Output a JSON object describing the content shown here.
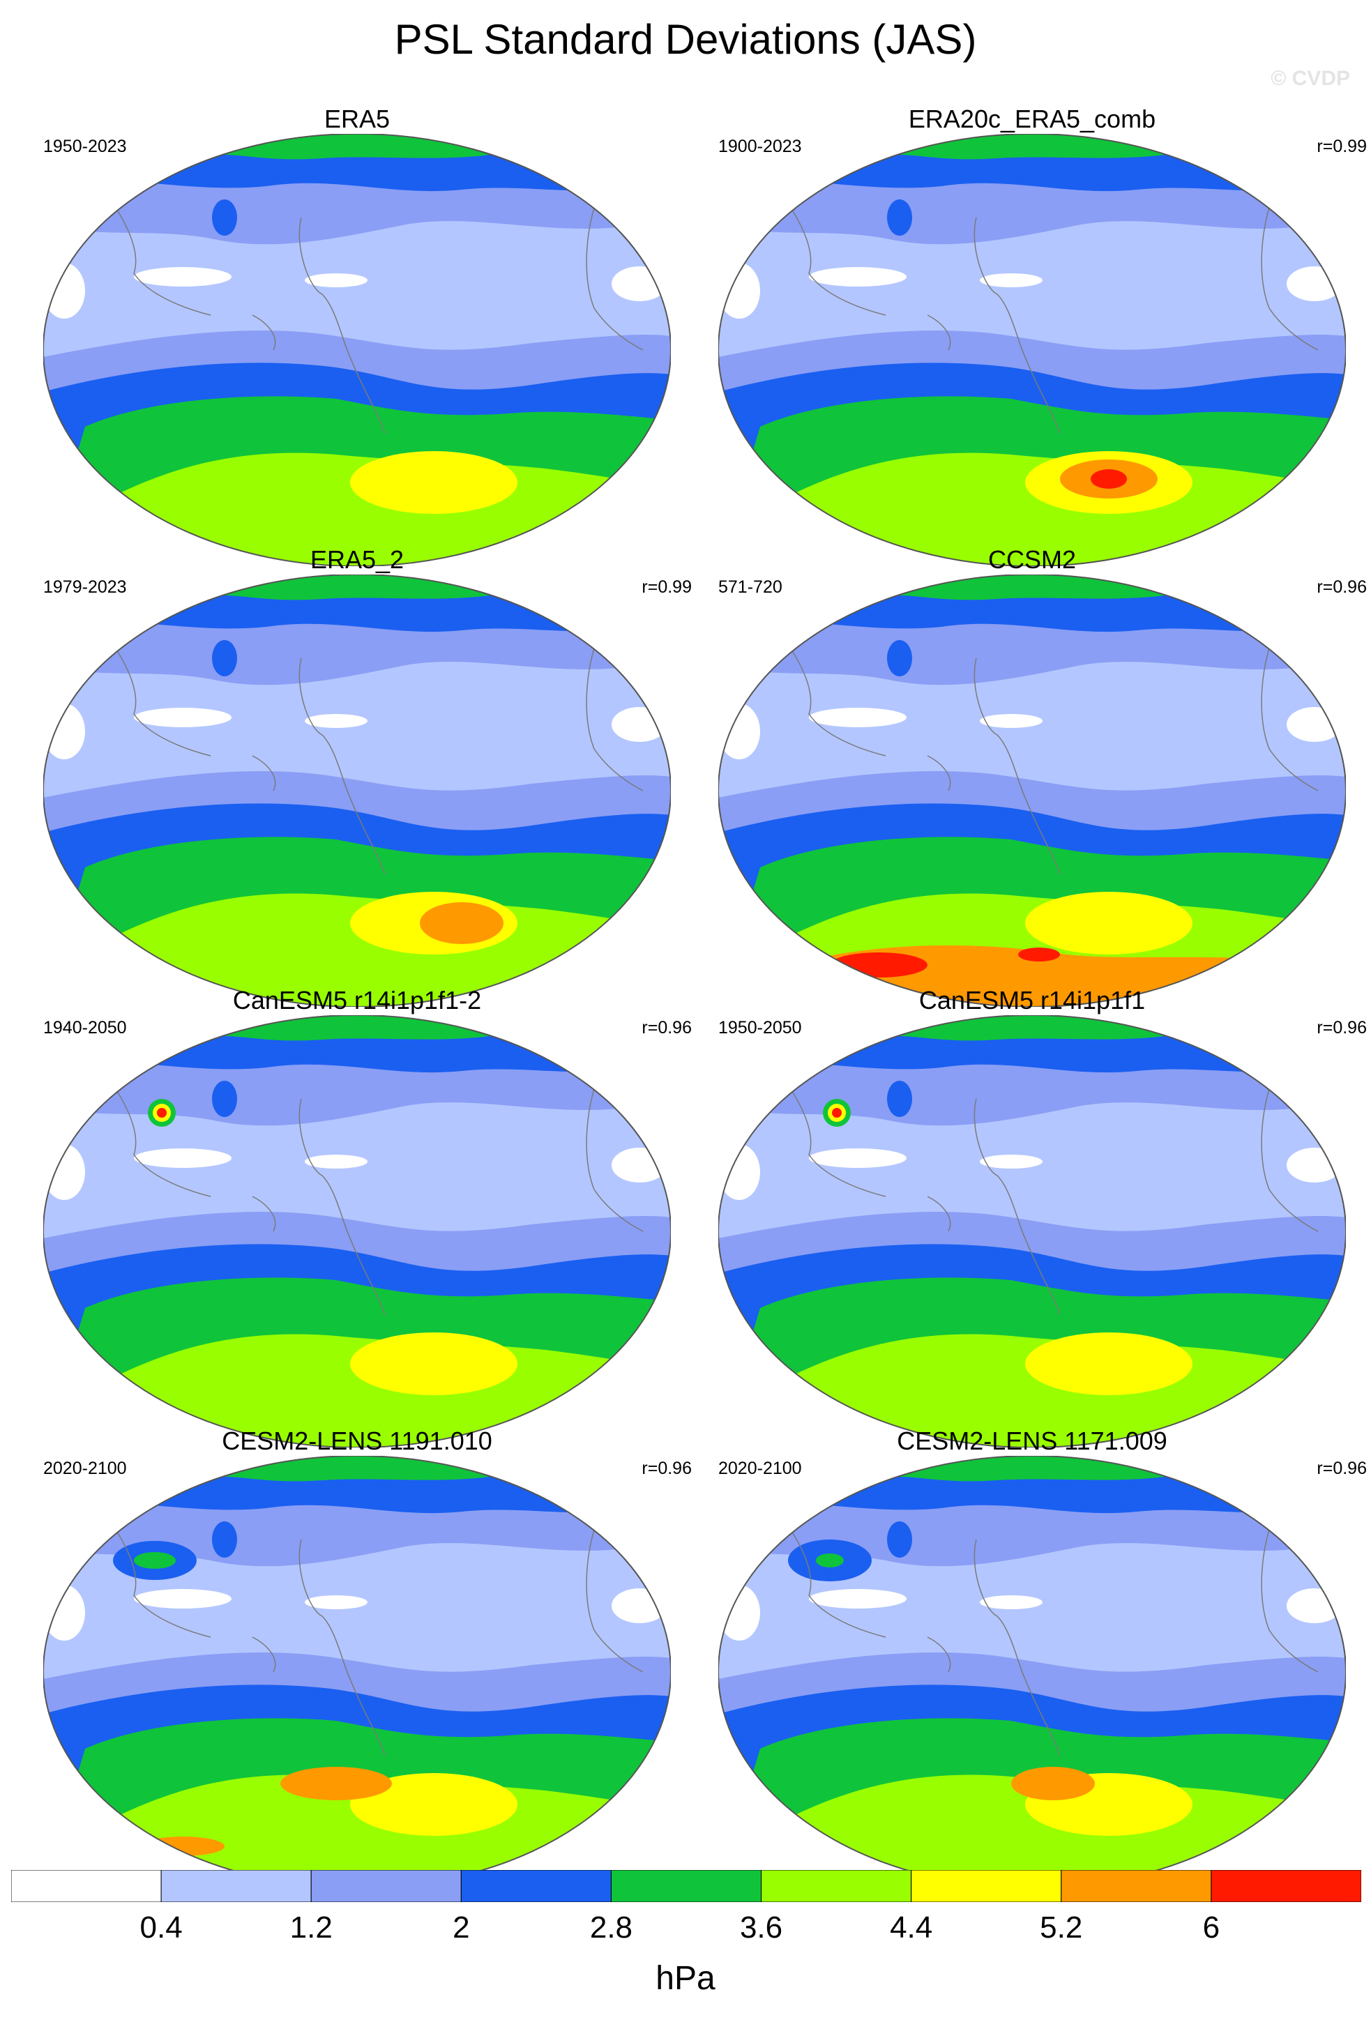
{
  "figure": {
    "title": "PSL Standard Deviations (JAS)",
    "watermark": "© CVDP"
  },
  "panels": [
    {
      "title": "ERA5",
      "period": "1950-2023",
      "r": ""
    },
    {
      "title": "ERA20c_ERA5_comb",
      "period": "1900-2023",
      "r": "r=0.99"
    },
    {
      "title": "ERA5_2",
      "period": "1979-2023",
      "r": "r=0.99"
    },
    {
      "title": "CCSM2",
      "period": "571-720",
      "r": "r=0.96"
    },
    {
      "title": "CanESM5 r14i1p1f1-2",
      "period": "1940-2050",
      "r": "r=0.96"
    },
    {
      "title": "CanESM5 r14i1p1f1",
      "period": "1950-2050",
      "r": "r=0.96"
    },
    {
      "title": "CESM2-LENS 1191.010",
      "period": "2020-2100",
      "r": "r=0.96"
    },
    {
      "title": "CESM2-LENS 1171.009",
      "period": "2020-2100",
      "r": "r=0.96"
    }
  ],
  "colorbar": {
    "labels": [
      "0.4",
      "1.2",
      "2",
      "2.8",
      "3.6",
      "4.4",
      "5.2",
      "6"
    ],
    "colors": [
      "#ffffff",
      "#b3c6ff",
      "#8a9ef5",
      "#1a5ff0",
      "#0fc43a",
      "#99ff00",
      "#ffff00",
      "#ff9900",
      "#ff1a00"
    ],
    "units": "hPa"
  }
}
